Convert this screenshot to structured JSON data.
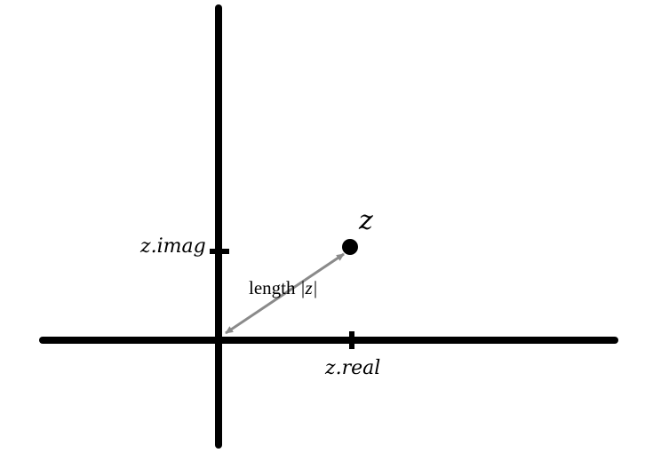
{
  "diagram": {
    "point_label": "z",
    "real_tick_label": "z.real",
    "imag_tick_label": "z.imag",
    "length_label_prefix": "length ",
    "length_label_var": "|z|",
    "colors": {
      "axes": "#000000",
      "point": "#000000",
      "arrow": "#8a8a8a",
      "background": "#ffffff"
    }
  }
}
